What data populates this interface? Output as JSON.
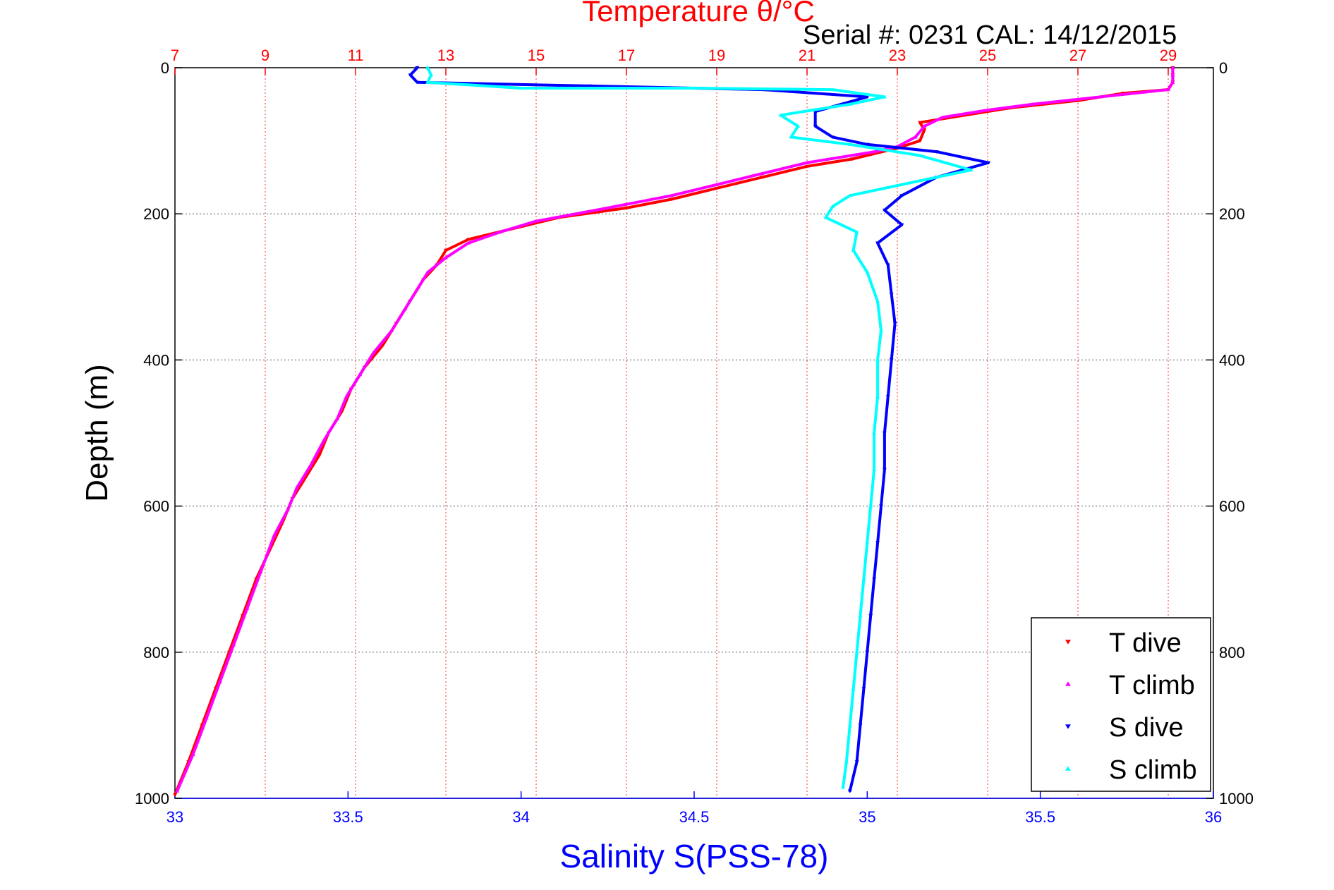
{
  "header": {
    "top_axis_title": "Temperature θ/°C",
    "serial_text": "Serial #: 0231  CAL: 14/12/2015"
  },
  "chart_data": {
    "type": "scatter",
    "xlabel": "Salinity S(PSS-78)",
    "ylabel": "Depth (m)",
    "x2label": "Temperature θ/°C",
    "xlim": [
      33,
      36
    ],
    "x2lim": [
      7,
      30
    ],
    "ylim": [
      0,
      1000
    ],
    "y_reversed": true,
    "x_ticks": [
      "33",
      "33.5",
      "34",
      "34.5",
      "35",
      "35.5",
      "36"
    ],
    "x_tick_values": [
      33,
      33.5,
      34,
      34.5,
      35,
      35.5,
      36
    ],
    "x2_ticks": [
      "7",
      "9",
      "11",
      "13",
      "15",
      "17",
      "19",
      "21",
      "23",
      "25",
      "27",
      "29"
    ],
    "x2_tick_values": [
      7,
      9,
      11,
      13,
      15,
      17,
      19,
      21,
      23,
      25,
      27,
      29
    ],
    "y_ticks": [
      "0",
      "200",
      "400",
      "600",
      "800",
      "1000"
    ],
    "y_tick_values": [
      0,
      200,
      400,
      600,
      800,
      1000
    ],
    "grid": true,
    "legend_position": "bottom-right",
    "series": [
      {
        "name": "T dive",
        "axis": "temperature",
        "color": "#ff0000",
        "marker": "triangle-down",
        "points": [
          [
            29.1,
            0
          ],
          [
            29.1,
            10
          ],
          [
            29.1,
            20
          ],
          [
            29.0,
            30
          ],
          [
            28.0,
            35
          ],
          [
            27.0,
            45
          ],
          [
            25.5,
            55
          ],
          [
            24.5,
            65
          ],
          [
            23.5,
            75
          ],
          [
            23.6,
            85
          ],
          [
            23.5,
            100
          ],
          [
            23.0,
            110
          ],
          [
            22.0,
            125
          ],
          [
            21.0,
            135
          ],
          [
            20.0,
            150
          ],
          [
            19.0,
            165
          ],
          [
            18.0,
            180
          ],
          [
            17.0,
            192
          ],
          [
            15.5,
            205
          ],
          [
            14.5,
            220
          ],
          [
            13.5,
            235
          ],
          [
            13.0,
            250
          ],
          [
            12.8,
            270
          ],
          [
            12.5,
            290
          ],
          [
            12.2,
            320
          ],
          [
            11.9,
            350
          ],
          [
            11.6,
            380
          ],
          [
            11.2,
            410
          ],
          [
            10.9,
            440
          ],
          [
            10.7,
            470
          ],
          [
            10.4,
            500
          ],
          [
            10.2,
            530
          ],
          [
            9.9,
            560
          ],
          [
            9.6,
            590
          ],
          [
            9.4,
            620
          ],
          [
            9.1,
            660
          ],
          [
            8.8,
            700
          ],
          [
            8.5,
            750
          ],
          [
            8.2,
            800
          ],
          [
            7.9,
            850
          ],
          [
            7.6,
            900
          ],
          [
            7.3,
            950
          ],
          [
            7.0,
            995
          ]
        ]
      },
      {
        "name": "T climb",
        "axis": "temperature",
        "color": "#ff00ff",
        "marker": "triangle-up",
        "points": [
          [
            29.1,
            0
          ],
          [
            29.1,
            10
          ],
          [
            29.1,
            20
          ],
          [
            29.0,
            30
          ],
          [
            27.5,
            40
          ],
          [
            26.0,
            50
          ],
          [
            25.0,
            58
          ],
          [
            24.0,
            68
          ],
          [
            23.6,
            80
          ],
          [
            23.4,
            95
          ],
          [
            23.0,
            108
          ],
          [
            22.5,
            115
          ],
          [
            21.0,
            130
          ],
          [
            20.0,
            145
          ],
          [
            19.0,
            160
          ],
          [
            18.0,
            175
          ],
          [
            16.5,
            193
          ],
          [
            15.0,
            210
          ],
          [
            14.2,
            225
          ],
          [
            13.5,
            240
          ],
          [
            13.0,
            260
          ],
          [
            12.6,
            280
          ],
          [
            12.4,
            300
          ],
          [
            12.1,
            330
          ],
          [
            11.8,
            360
          ],
          [
            11.4,
            390
          ],
          [
            11.1,
            420
          ],
          [
            10.8,
            450
          ],
          [
            10.6,
            480
          ],
          [
            10.3,
            510
          ],
          [
            10.0,
            545
          ],
          [
            9.7,
            575
          ],
          [
            9.5,
            605
          ],
          [
            9.2,
            640
          ],
          [
            8.9,
            690
          ],
          [
            8.6,
            740
          ],
          [
            8.3,
            790
          ],
          [
            8.0,
            840
          ],
          [
            7.7,
            890
          ],
          [
            7.4,
            940
          ],
          [
            7.05,
            990
          ]
        ]
      },
      {
        "name": "S dive",
        "axis": "salinity",
        "color": "#0000ff",
        "marker": "triangle-down",
        "points": [
          [
            33.7,
            0
          ],
          [
            33.68,
            10
          ],
          [
            33.7,
            20
          ],
          [
            34.2,
            25
          ],
          [
            34.7,
            30
          ],
          [
            35.0,
            40
          ],
          [
            34.85,
            60
          ],
          [
            34.85,
            80
          ],
          [
            34.9,
            95
          ],
          [
            35.0,
            105
          ],
          [
            35.2,
            115
          ],
          [
            35.35,
            130
          ],
          [
            35.2,
            150
          ],
          [
            35.1,
            175
          ],
          [
            35.05,
            195
          ],
          [
            35.1,
            215
          ],
          [
            35.03,
            240
          ],
          [
            35.06,
            270
          ],
          [
            35.07,
            310
          ],
          [
            35.08,
            350
          ],
          [
            35.07,
            400
          ],
          [
            35.06,
            450
          ],
          [
            35.05,
            500
          ],
          [
            35.05,
            550
          ],
          [
            35.04,
            600
          ],
          [
            35.03,
            650
          ],
          [
            35.02,
            700
          ],
          [
            35.01,
            750
          ],
          [
            35.0,
            800
          ],
          [
            34.99,
            850
          ],
          [
            34.98,
            900
          ],
          [
            34.97,
            950
          ],
          [
            34.95,
            990
          ]
        ]
      },
      {
        "name": "S climb",
        "axis": "salinity",
        "color": "#00ffff",
        "marker": "triangle-up",
        "points": [
          [
            33.73,
            0
          ],
          [
            33.74,
            10
          ],
          [
            33.73,
            20
          ],
          [
            34.0,
            28
          ],
          [
            34.5,
            28
          ],
          [
            34.9,
            30
          ],
          [
            35.05,
            40
          ],
          [
            34.95,
            50
          ],
          [
            34.75,
            65
          ],
          [
            34.8,
            80
          ],
          [
            34.78,
            95
          ],
          [
            34.95,
            105
          ],
          [
            35.15,
            120
          ],
          [
            35.3,
            140
          ],
          [
            35.15,
            155
          ],
          [
            34.95,
            175
          ],
          [
            34.9,
            190
          ],
          [
            34.88,
            205
          ],
          [
            34.97,
            225
          ],
          [
            34.96,
            250
          ],
          [
            35.0,
            280
          ],
          [
            35.03,
            320
          ],
          [
            35.04,
            360
          ],
          [
            35.03,
            400
          ],
          [
            35.03,
            450
          ],
          [
            35.02,
            500
          ],
          [
            35.02,
            550
          ],
          [
            35.01,
            600
          ],
          [
            35.0,
            650
          ],
          [
            34.99,
            700
          ],
          [
            34.98,
            750
          ],
          [
            34.97,
            800
          ],
          [
            34.96,
            850
          ],
          [
            34.95,
            900
          ],
          [
            34.94,
            950
          ],
          [
            34.93,
            985
          ]
        ]
      }
    ]
  }
}
